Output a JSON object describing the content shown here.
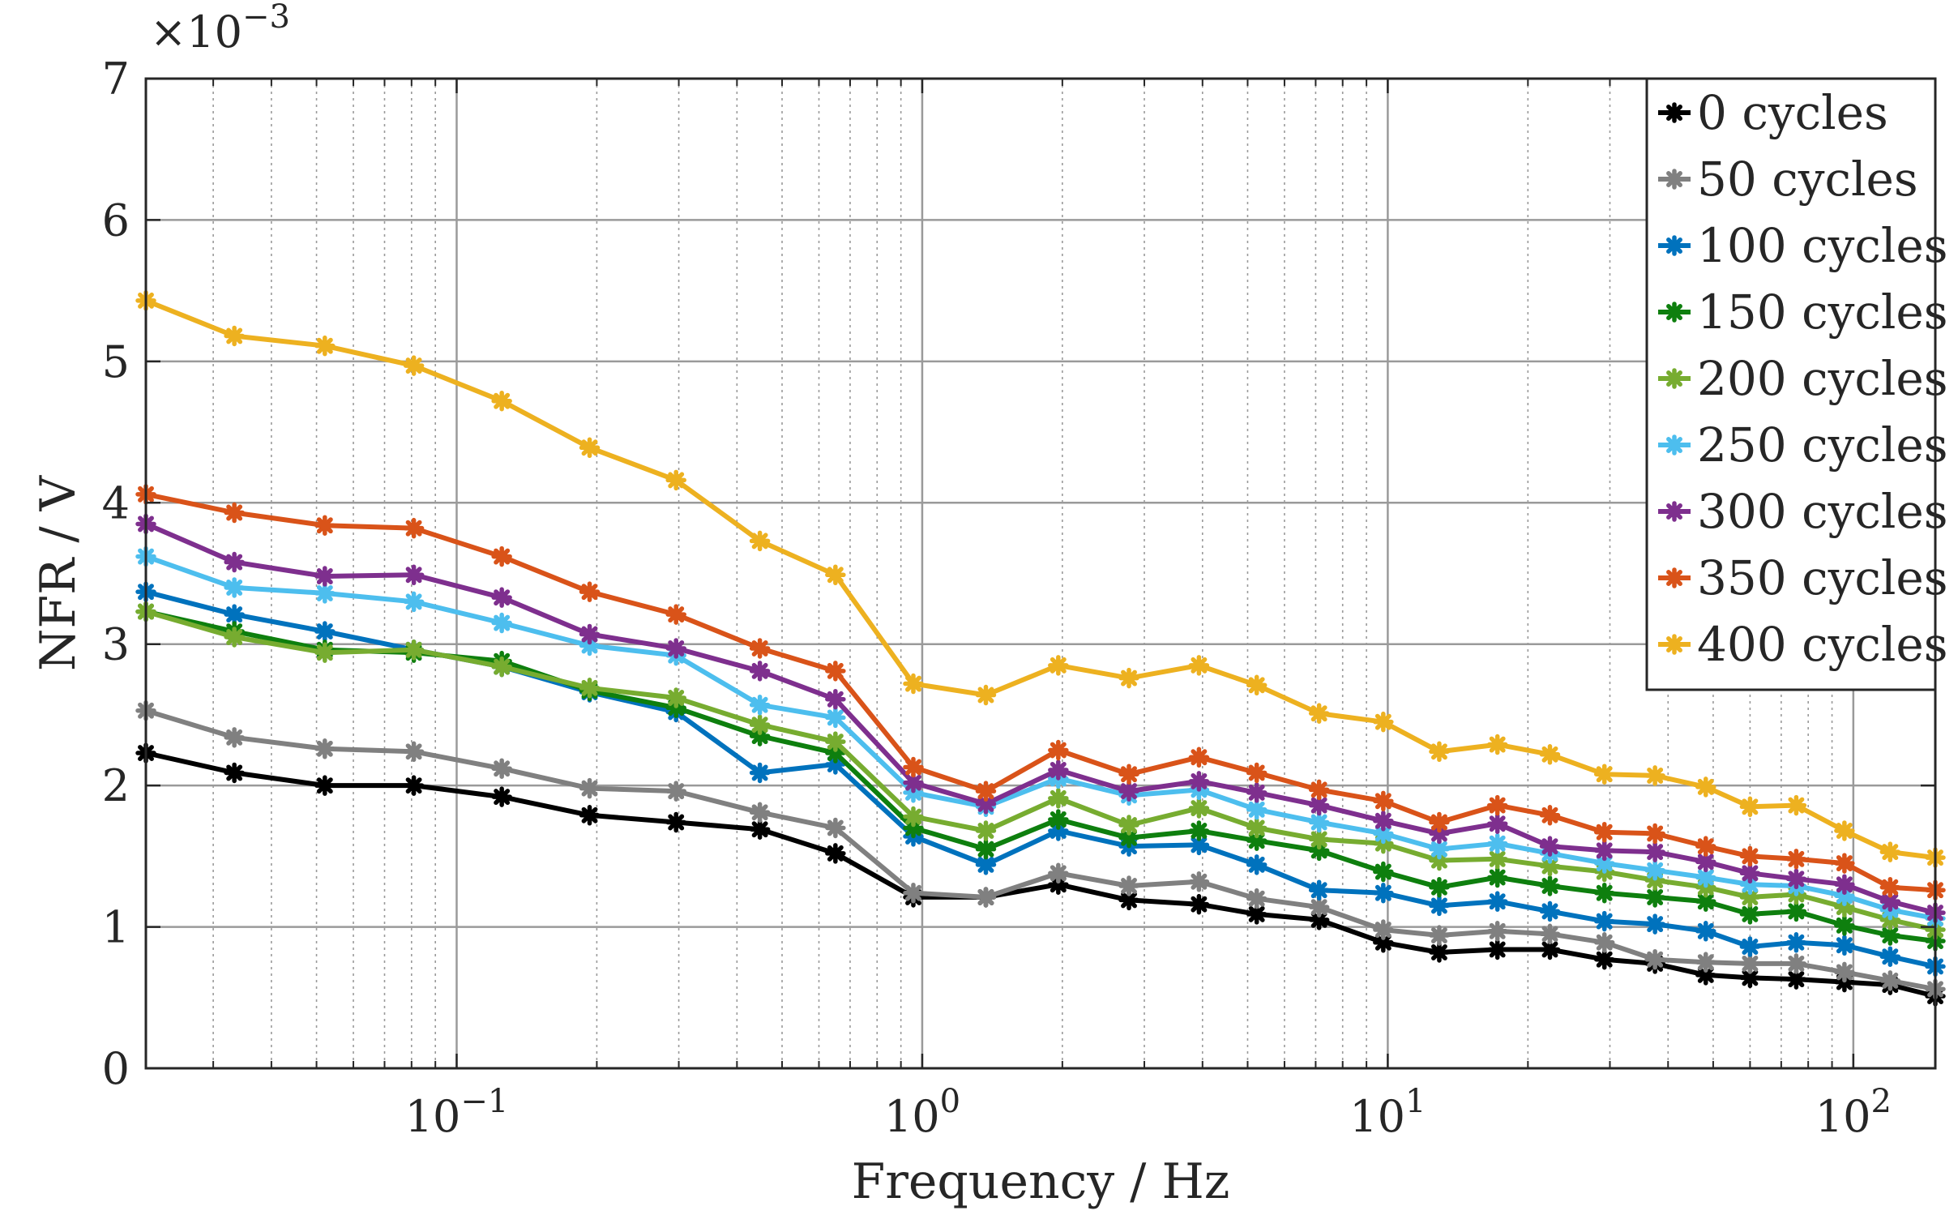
{
  "chart_data": {
    "type": "line",
    "title": "",
    "xlabel": "Frequency / Hz",
    "ylabel": "NFR / V",
    "x_scale": "log",
    "xlim": [
      0.0215,
      150
    ],
    "ylim": [
      0,
      0.007
    ],
    "y_multiplier": {
      "base": "×10",
      "exponent": "−3"
    },
    "grid": true,
    "legend_position": "top-right",
    "x_ticks": [
      {
        "value": 0.1,
        "base": "10",
        "exp": "−1"
      },
      {
        "value": 1,
        "base": "10",
        "exp": "0"
      },
      {
        "value": 10,
        "base": "10",
        "exp": "1"
      },
      {
        "value": 100,
        "base": "10",
        "exp": "2"
      }
    ],
    "y_ticks": [
      {
        "value": 0,
        "label": "0"
      },
      {
        "value": 0.001,
        "label": "1"
      },
      {
        "value": 0.002,
        "label": "2"
      },
      {
        "value": 0.003,
        "label": "3"
      },
      {
        "value": 0.004,
        "label": "4"
      },
      {
        "value": 0.005,
        "label": "5"
      },
      {
        "value": 0.006,
        "label": "6"
      },
      {
        "value": 0.007,
        "label": "7"
      }
    ],
    "x": [
      0.0215,
      0.0333,
      0.0521,
      0.0809,
      0.125,
      0.193,
      0.296,
      0.448,
      0.651,
      0.957,
      1.37,
      1.96,
      2.78,
      3.93,
      5.23,
      7.12,
      9.78,
      12.9,
      17.2,
      22.3,
      29.2,
      37.5,
      48.2,
      60.0,
      75.4,
      95.7,
      120,
      150
    ],
    "series": [
      {
        "name": "0 cycles",
        "color": "#000000",
        "values": [
          0.00223,
          0.00209,
          0.002,
          0.002,
          0.00192,
          0.00179,
          0.00174,
          0.00169,
          0.00152,
          0.00121,
          0.00121,
          0.0013,
          0.00119,
          0.00116,
          0.00109,
          0.00105,
          0.00089,
          0.00082,
          0.00084,
          0.00084,
          0.00077,
          0.00074,
          0.00066,
          0.00064,
          0.00063,
          0.00061,
          0.00059,
          0.00051
        ]
      },
      {
        "name": "50 cycles",
        "color": "#808080",
        "values": [
          0.00253,
          0.00234,
          0.00226,
          0.00224,
          0.00212,
          0.00198,
          0.00196,
          0.00181,
          0.0017,
          0.00124,
          0.00121,
          0.00138,
          0.00129,
          0.00132,
          0.0012,
          0.00114,
          0.00098,
          0.00094,
          0.00097,
          0.00095,
          0.00089,
          0.00077,
          0.00075,
          0.00074,
          0.00074,
          0.00068,
          0.00062,
          0.00056
        ]
      },
      {
        "name": "100 cycles",
        "color": "#0072BD",
        "values": [
          0.00337,
          0.00321,
          0.00309,
          0.00296,
          0.00284,
          0.00266,
          0.00252,
          0.00209,
          0.00215,
          0.00164,
          0.00144,
          0.00168,
          0.00157,
          0.00158,
          0.00144,
          0.00126,
          0.00124,
          0.00115,
          0.00118,
          0.00111,
          0.00104,
          0.00102,
          0.00097,
          0.00086,
          0.00089,
          0.00087,
          0.00079,
          0.00072
        ]
      },
      {
        "name": "150 cycles",
        "color": "#0E7F0E",
        "values": [
          0.00323,
          0.00309,
          0.00296,
          0.00294,
          0.00288,
          0.00267,
          0.00255,
          0.00235,
          0.00223,
          0.0017,
          0.00155,
          0.00176,
          0.00163,
          0.00168,
          0.00161,
          0.00154,
          0.00139,
          0.00128,
          0.00135,
          0.00129,
          0.00124,
          0.00121,
          0.00118,
          0.00109,
          0.00111,
          0.00101,
          0.00094,
          0.0009
        ]
      },
      {
        "name": "200 cycles",
        "color": "#77AC30",
        "values": [
          0.00323,
          0.00305,
          0.00294,
          0.00296,
          0.00284,
          0.00269,
          0.00262,
          0.00243,
          0.00231,
          0.00178,
          0.00168,
          0.00191,
          0.00172,
          0.00184,
          0.0017,
          0.00162,
          0.00159,
          0.00147,
          0.00148,
          0.00143,
          0.00139,
          0.00133,
          0.00128,
          0.00121,
          0.00123,
          0.00114,
          0.00105,
          0.00098
        ]
      },
      {
        "name": "250 cycles",
        "color": "#4DBEEE",
        "values": [
          0.00362,
          0.0034,
          0.00336,
          0.0033,
          0.00315,
          0.00299,
          0.00292,
          0.00257,
          0.00248,
          0.00195,
          0.00185,
          0.00205,
          0.00193,
          0.00197,
          0.00183,
          0.00174,
          0.00166,
          0.00155,
          0.00159,
          0.00152,
          0.00145,
          0.0014,
          0.00135,
          0.0013,
          0.00129,
          0.00122,
          0.00112,
          0.00106
        ]
      },
      {
        "name": "300 cycles",
        "color": "#7E2F8E",
        "values": [
          0.00385,
          0.00358,
          0.00348,
          0.00349,
          0.00333,
          0.00307,
          0.00297,
          0.00281,
          0.00261,
          0.00202,
          0.00187,
          0.00211,
          0.00196,
          0.00203,
          0.00195,
          0.00186,
          0.00175,
          0.00166,
          0.00173,
          0.00157,
          0.00154,
          0.00153,
          0.00146,
          0.00138,
          0.00134,
          0.0013,
          0.00118,
          0.0011
        ]
      },
      {
        "name": "350 cycles",
        "color": "#D95319",
        "values": [
          0.00406,
          0.00393,
          0.00384,
          0.00382,
          0.00362,
          0.00337,
          0.00321,
          0.00297,
          0.00281,
          0.00213,
          0.00196,
          0.00225,
          0.00208,
          0.0022,
          0.00209,
          0.00197,
          0.00189,
          0.00174,
          0.00186,
          0.00179,
          0.00167,
          0.00166,
          0.00157,
          0.0015,
          0.00148,
          0.00145,
          0.00128,
          0.00126
        ]
      },
      {
        "name": "400 cycles",
        "color": "#EDB120",
        "values": [
          0.00543,
          0.00518,
          0.00511,
          0.00497,
          0.00472,
          0.00439,
          0.00416,
          0.00373,
          0.00349,
          0.00272,
          0.00264,
          0.00285,
          0.00276,
          0.00285,
          0.00271,
          0.00251,
          0.00245,
          0.00224,
          0.00229,
          0.00222,
          0.00208,
          0.00207,
          0.00199,
          0.00185,
          0.00186,
          0.00168,
          0.00153,
          0.00149
        ]
      }
    ]
  }
}
